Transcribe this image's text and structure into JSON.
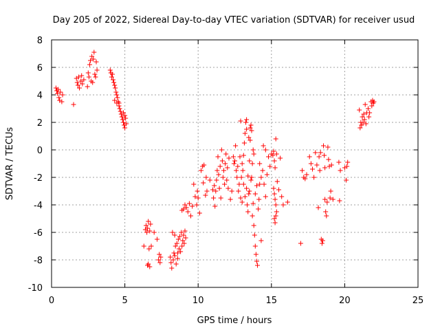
{
  "chart_data": {
    "type": "scatter",
    "title": "Day 205 of 2022, Sidereal Day-to-day VTEC variation (SDTVAR) for receiver usud",
    "xlabel": "GPS time / hours",
    "ylabel": "SDTVAR / TECUs",
    "xlim": [
      0,
      25
    ],
    "ylim": [
      -10,
      8
    ],
    "xticks": [
      0,
      5,
      10,
      15,
      20,
      25
    ],
    "xtick_labels": [
      "0",
      "5",
      "10",
      "15",
      "20",
      "25"
    ],
    "yticks": [
      -10,
      -8,
      -6,
      -4,
      -2,
      0,
      2,
      4,
      6,
      8
    ],
    "ytick_labels": [
      "-10",
      "-8",
      "-6",
      "-4",
      "-2",
      "0",
      "2",
      "4",
      "6",
      "8"
    ],
    "grid": true,
    "marker": "+",
    "color": "#ff0000",
    "series": [
      {
        "name": "SDTVAR",
        "points": [
          [
            0.3,
            4.5
          ],
          [
            0.35,
            4.3
          ],
          [
            0.4,
            4.1
          ],
          [
            0.45,
            4.4
          ],
          [
            0.5,
            3.8
          ],
          [
            0.55,
            3.6
          ],
          [
            0.6,
            4.2
          ],
          [
            0.7,
            3.5
          ],
          [
            0.75,
            4.0
          ],
          [
            1.5,
            3.3
          ],
          [
            1.7,
            5.2
          ],
          [
            1.75,
            4.9
          ],
          [
            1.8,
            4.7
          ],
          [
            1.85,
            5.3
          ],
          [
            1.9,
            4.5
          ],
          [
            2.0,
            5.0
          ],
          [
            2.05,
            5.4
          ],
          [
            2.1,
            4.8
          ],
          [
            2.2,
            5.1
          ],
          [
            2.45,
            4.6
          ],
          [
            2.5,
            5.6
          ],
          [
            2.55,
            5.3
          ],
          [
            2.6,
            6.2
          ],
          [
            2.65,
            6.5
          ],
          [
            2.7,
            5.0
          ],
          [
            2.75,
            6.8
          ],
          [
            2.8,
            4.9
          ],
          [
            2.85,
            6.6
          ],
          [
            2.9,
            7.1
          ],
          [
            2.95,
            5.5
          ],
          [
            3.0,
            5.3
          ],
          [
            3.05,
            6.4
          ],
          [
            3.1,
            5.8
          ],
          [
            4.0,
            5.8
          ],
          [
            4.05,
            5.6
          ],
          [
            4.1,
            5.3
          ],
          [
            4.15,
            5.5
          ],
          [
            4.2,
            5.1
          ],
          [
            4.25,
            4.9
          ],
          [
            4.3,
            4.7
          ],
          [
            4.35,
            4.5
          ],
          [
            4.4,
            4.2
          ],
          [
            4.45,
            4.0
          ],
          [
            4.5,
            3.8
          ],
          [
            4.55,
            3.5
          ],
          [
            4.6,
            3.2
          ],
          [
            4.65,
            3.0
          ],
          [
            4.7,
            2.8
          ],
          [
            4.75,
            2.6
          ],
          [
            4.8,
            2.4
          ],
          [
            4.85,
            2.2
          ],
          [
            4.9,
            2.0
          ],
          [
            4.95,
            1.8
          ],
          [
            5.0,
            1.6
          ],
          [
            5.05,
            2.3
          ],
          [
            5.1,
            1.9
          ],
          [
            5.0,
            2.5
          ],
          [
            4.9,
            2.7
          ],
          [
            4.3,
            3.6
          ],
          [
            4.45,
            3.4
          ],
          [
            4.6,
            3.4
          ],
          [
            6.3,
            -7.0
          ],
          [
            6.4,
            -5.8
          ],
          [
            6.45,
            -5.5
          ],
          [
            6.5,
            -6.0
          ],
          [
            6.55,
            -5.7
          ],
          [
            6.6,
            -5.2
          ],
          [
            6.65,
            -7.2
          ],
          [
            6.7,
            -5.9
          ],
          [
            6.75,
            -5.4
          ],
          [
            6.8,
            -7.0
          ],
          [
            6.55,
            -8.4
          ],
          [
            6.6,
            -8.3
          ],
          [
            6.7,
            -8.5
          ],
          [
            7.0,
            -6.0
          ],
          [
            7.2,
            -6.5
          ],
          [
            7.3,
            -8.0
          ],
          [
            7.35,
            -7.6
          ],
          [
            7.4,
            -8.2
          ],
          [
            7.45,
            -7.8
          ],
          [
            8.1,
            -7.8
          ],
          [
            8.15,
            -8.2
          ],
          [
            8.2,
            -8.6
          ],
          [
            8.25,
            -6.0
          ],
          [
            8.3,
            -8.0
          ],
          [
            8.35,
            -7.5
          ],
          [
            8.4,
            -6.2
          ],
          [
            8.45,
            -7.0
          ],
          [
            8.5,
            -8.3
          ],
          [
            8.55,
            -6.8
          ],
          [
            8.6,
            -7.9
          ],
          [
            8.65,
            -6.5
          ],
          [
            8.7,
            -7.2
          ],
          [
            8.75,
            -6.3
          ],
          [
            8.8,
            -7.4
          ],
          [
            8.85,
            -6.0
          ],
          [
            8.9,
            -7.0
          ],
          [
            8.95,
            -6.6
          ],
          [
            9.0,
            -6.2
          ],
          [
            9.05,
            -6.8
          ],
          [
            9.1,
            -5.9
          ],
          [
            9.15,
            -6.4
          ],
          [
            8.6,
            -7.5
          ],
          [
            8.4,
            -7.7
          ],
          [
            8.9,
            -4.4
          ],
          [
            9.0,
            -4.3
          ],
          [
            9.1,
            -4.0
          ],
          [
            9.2,
            -4.2
          ],
          [
            9.3,
            -4.5
          ],
          [
            9.4,
            -3.9
          ],
          [
            9.5,
            -4.8
          ],
          [
            9.6,
            -4.1
          ],
          [
            9.7,
            -2.5
          ],
          [
            9.8,
            -3.4
          ],
          [
            9.9,
            -4.0
          ],
          [
            9.95,
            -3.0
          ],
          [
            10.0,
            -3.5
          ],
          [
            10.1,
            -4.6
          ],
          [
            10.2,
            -1.5
          ],
          [
            10.3,
            -1.2
          ],
          [
            10.35,
            -2.4
          ],
          [
            10.4,
            -1.1
          ],
          [
            10.5,
            -3.3
          ],
          [
            10.55,
            -2.0
          ],
          [
            10.6,
            -3.0
          ],
          [
            10.8,
            -2.2
          ],
          [
            11.0,
            -2.9
          ],
          [
            11.05,
            -3.5
          ],
          [
            11.1,
            -2.6
          ],
          [
            11.15,
            -4.1
          ],
          [
            11.2,
            -3.0
          ],
          [
            11.25,
            -2.2
          ],
          [
            11.3,
            -1.5
          ],
          [
            11.35,
            -0.5
          ],
          [
            11.4,
            -1.8
          ],
          [
            11.45,
            -2.8
          ],
          [
            11.5,
            -1.2
          ],
          [
            11.55,
            -3.5
          ],
          [
            11.6,
            0.0
          ],
          [
            11.65,
            -0.8
          ],
          [
            11.7,
            -2.0
          ],
          [
            11.75,
            -1.5
          ],
          [
            11.8,
            -2.5
          ],
          [
            11.85,
            -1.0
          ],
          [
            11.9,
            -0.3
          ],
          [
            11.95,
            -2.2
          ],
          [
            12.0,
            -1.3
          ],
          [
            12.05,
            -2.8
          ],
          [
            12.1,
            -0.6
          ],
          [
            12.2,
            -3.6
          ],
          [
            12.3,
            -3.0
          ],
          [
            12.4,
            -0.5
          ],
          [
            12.45,
            -1.0
          ],
          [
            12.5,
            -0.8
          ],
          [
            12.55,
            0.3
          ],
          [
            12.6,
            -1.5
          ],
          [
            12.65,
            -2.0
          ],
          [
            12.7,
            -1.2
          ],
          [
            12.75,
            -3.0
          ],
          [
            12.8,
            -2.5
          ],
          [
            12.85,
            -0.5
          ],
          [
            12.9,
            -3.5
          ],
          [
            12.95,
            -2.0
          ],
          [
            13.0,
            -3.8
          ],
          [
            13.05,
            -1.5
          ],
          [
            13.1,
            -0.4
          ],
          [
            13.15,
            0.5
          ],
          [
            13.2,
            1.2
          ],
          [
            13.25,
            2.0
          ],
          [
            13.3,
            1.5
          ],
          [
            13.35,
            -4.0
          ],
          [
            13.4,
            -4.5
          ],
          [
            13.45,
            -3.2
          ],
          [
            13.5,
            -0.8
          ],
          [
            13.55,
            0.7
          ],
          [
            13.6,
            1.8
          ],
          [
            13.65,
            -2.0
          ],
          [
            13.7,
            -4.8
          ],
          [
            13.75,
            -3.9
          ],
          [
            13.8,
            -5.5
          ],
          [
            13.85,
            -6.2
          ],
          [
            13.9,
            -7.0
          ],
          [
            13.95,
            -7.6
          ],
          [
            14.0,
            -8.1
          ],
          [
            14.05,
            -8.4
          ],
          [
            14.1,
            -4.3
          ],
          [
            14.15,
            -3.6
          ],
          [
            14.2,
            -2.5
          ],
          [
            14.3,
            -6.6
          ],
          [
            13.0,
            -1.0
          ],
          [
            13.1,
            -2.5
          ],
          [
            13.2,
            -3.4
          ],
          [
            13.3,
            -2.8
          ],
          [
            13.4,
            -1.9
          ],
          [
            13.5,
            -3.0
          ],
          [
            13.6,
            -2.2
          ],
          [
            13.7,
            -1.0
          ],
          [
            13.8,
            -0.3
          ],
          [
            13.9,
            -3.2
          ],
          [
            14.0,
            -2.6
          ],
          [
            14.2,
            -1.0
          ],
          [
            14.3,
            -2.0
          ],
          [
            14.4,
            -1.5
          ],
          [
            14.5,
            -2.5
          ],
          [
            14.6,
            -3.4
          ],
          [
            14.7,
            -1.8
          ],
          [
            14.8,
            -0.5
          ],
          [
            14.9,
            -1.2
          ],
          [
            15.0,
            -0.3
          ],
          [
            14.45,
            0.3
          ],
          [
            14.6,
            0.0
          ],
          [
            12.9,
            2.1
          ],
          [
            13.3,
            2.2
          ],
          [
            13.45,
            0.9
          ],
          [
            13.55,
            1.6
          ],
          [
            13.65,
            1.4
          ],
          [
            13.75,
            0.0
          ],
          [
            15.1,
            -0.4
          ],
          [
            15.15,
            -0.1
          ],
          [
            15.2,
            -0.8
          ],
          [
            15.25,
            -1.3
          ],
          [
            15.3,
            0.8
          ],
          [
            15.35,
            -0.3
          ],
          [
            15.15,
            -2.8
          ],
          [
            15.2,
            -3.2
          ],
          [
            15.25,
            -3.6
          ],
          [
            15.3,
            -4.0
          ],
          [
            15.35,
            -4.5
          ],
          [
            15.2,
            -5.0
          ],
          [
            15.25,
            -5.3
          ],
          [
            15.3,
            -4.8
          ],
          [
            15.4,
            -2.3
          ],
          [
            15.5,
            -2.9
          ],
          [
            15.6,
            -0.6
          ],
          [
            15.7,
            -3.4
          ],
          [
            15.8,
            -4.0
          ],
          [
            16.1,
            -3.8
          ],
          [
            17.0,
            -6.8
          ],
          [
            17.1,
            -1.5
          ],
          [
            17.2,
            -2.0
          ],
          [
            17.3,
            -2.1
          ],
          [
            17.4,
            -1.8
          ],
          [
            17.6,
            -0.5
          ],
          [
            17.7,
            -1.0
          ],
          [
            17.8,
            -1.4
          ],
          [
            17.9,
            -2.0
          ],
          [
            18.0,
            -0.2
          ],
          [
            18.1,
            -1.1
          ],
          [
            18.2,
            -4.2
          ],
          [
            18.25,
            -0.5
          ],
          [
            18.3,
            -1.5
          ],
          [
            18.35,
            -0.2
          ],
          [
            18.4,
            -6.5
          ],
          [
            18.45,
            -6.8
          ],
          [
            18.5,
            -6.6
          ],
          [
            18.55,
            0.3
          ],
          [
            18.6,
            -0.4
          ],
          [
            18.65,
            -1.3
          ],
          [
            18.7,
            -4.5
          ],
          [
            18.75,
            -4.8
          ],
          [
            18.8,
            -3.8
          ],
          [
            18.85,
            0.2
          ],
          [
            18.9,
            -0.7
          ],
          [
            18.95,
            -1.2
          ],
          [
            19.0,
            -3.5
          ],
          [
            19.05,
            -3.0
          ],
          [
            19.1,
            -1.1
          ],
          [
            19.2,
            -3.6
          ],
          [
            18.65,
            -3.6
          ],
          [
            19.6,
            -0.9
          ],
          [
            19.65,
            -3.7
          ],
          [
            19.7,
            -1.5
          ],
          [
            20.0,
            -1.3
          ],
          [
            20.2,
            -0.9
          ],
          [
            20.1,
            -2.2
          ],
          [
            20.15,
            -1.2
          ],
          [
            21.0,
            2.9
          ],
          [
            21.05,
            1.6
          ],
          [
            21.1,
            2.0
          ],
          [
            21.15,
            1.8
          ],
          [
            21.2,
            2.4
          ],
          [
            21.25,
            2.0
          ],
          [
            21.3,
            2.6
          ],
          [
            21.35,
            2.2
          ],
          [
            21.4,
            3.3
          ],
          [
            21.45,
            1.9
          ],
          [
            21.5,
            2.7
          ],
          [
            21.6,
            3.0
          ],
          [
            21.65,
            2.4
          ],
          [
            21.7,
            2.7
          ],
          [
            21.8,
            3.5
          ],
          [
            21.85,
            3.2
          ],
          [
            21.9,
            3.6
          ],
          [
            21.95,
            3.4
          ],
          [
            22.0,
            3.5
          ]
        ]
      }
    ]
  }
}
